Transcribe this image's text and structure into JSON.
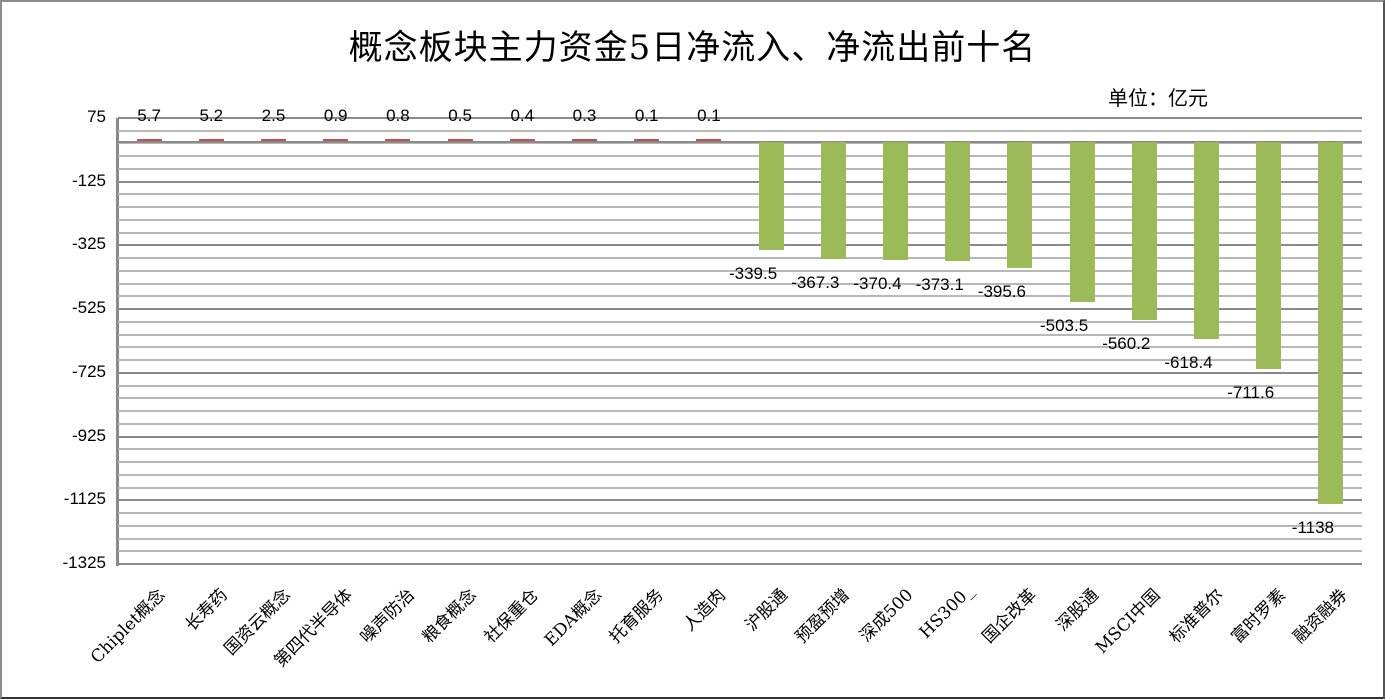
{
  "chart_data": {
    "type": "bar",
    "title": "概念板块主力资金5日净流入、净流出前十名",
    "unit_label": "单位：亿元",
    "xlabel": "",
    "ylabel": "",
    "ylim": [
      -1325,
      75
    ],
    "yticks": [
      75,
      -125,
      -325,
      -525,
      -725,
      -925,
      -1125,
      -1325
    ],
    "grid": true,
    "legend": null,
    "categories": [
      "Chiplet概念",
      "长寿药",
      "国资云概念",
      "第四代半导体",
      "噪声防治",
      "粮食概念",
      "社保重仓",
      "EDA概念",
      "托育服务",
      "人造肉",
      "沪股通",
      "预盈预增",
      "深成500",
      "HS300_",
      "国企改革",
      "深股通",
      "MSCI中国",
      "标准普尔",
      "富时罗素",
      "融资融券"
    ],
    "values": [
      5.7,
      5.2,
      2.5,
      0.9,
      0.8,
      0.5,
      0.4,
      0.3,
      0.1,
      0.1,
      -339.5,
      -367.3,
      -370.4,
      -373.1,
      -395.6,
      -503.5,
      -560.2,
      -618.4,
      -711.6,
      -1138
    ],
    "value_labels": [
      "5.7",
      "5.2",
      "2.5",
      "0.9",
      "0.8",
      "0.5",
      "0.4",
      "0.3",
      "0.1",
      "0.1",
      "-339.5",
      "-367.3",
      "-370.4",
      "-373.1",
      "-395.6",
      "-503.5",
      "-560.2",
      "-618.4",
      "-711.6",
      "-1138"
    ],
    "colors": {
      "positive": "#c0504d",
      "negative": "#9bbb59"
    }
  }
}
